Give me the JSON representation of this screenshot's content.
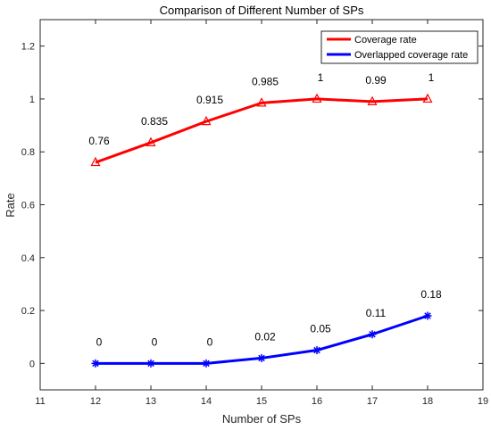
{
  "chart_data": {
    "type": "line",
    "title": "Comparison of Different Number of SPs",
    "xlabel": "Number of SPs",
    "ylabel": "Rate",
    "xlim": [
      11,
      19
    ],
    "ylim": [
      -0.1,
      1.3
    ],
    "x_ticks": [
      11,
      12,
      13,
      14,
      15,
      16,
      17,
      18,
      19
    ],
    "y_ticks": [
      0,
      0.2,
      0.4,
      0.6,
      0.8,
      1,
      1.2
    ],
    "x_tick_labels": [
      "11",
      "12",
      "13",
      "14",
      "15",
      "16",
      "17",
      "18",
      "19"
    ],
    "y_tick_labels": [
      "0",
      "0.2",
      "0.4",
      "0.6",
      "0.8",
      "1",
      "1.2"
    ],
    "grid": false,
    "legend_position": "top-right",
    "x": [
      12,
      13,
      14,
      15,
      16,
      17,
      18
    ],
    "series": [
      {
        "name": "Coverage rate",
        "color": "#ff0000",
        "marker": "triangle",
        "values": [
          0.76,
          0.835,
          0.915,
          0.985,
          1,
          0.99,
          1
        ],
        "labels": [
          "0.76",
          "0.835",
          "0.915",
          "0.985",
          "1",
          "0.99",
          "1"
        ]
      },
      {
        "name": "Overlapped coverage rate",
        "color": "#0000ff",
        "marker": "asterisk",
        "values": [
          0,
          0,
          0,
          0.02,
          0.05,
          0.11,
          0.18
        ],
        "labels": [
          "0",
          "0",
          "0",
          "0.02",
          "0.05",
          "0.11",
          "0.18"
        ]
      }
    ]
  }
}
